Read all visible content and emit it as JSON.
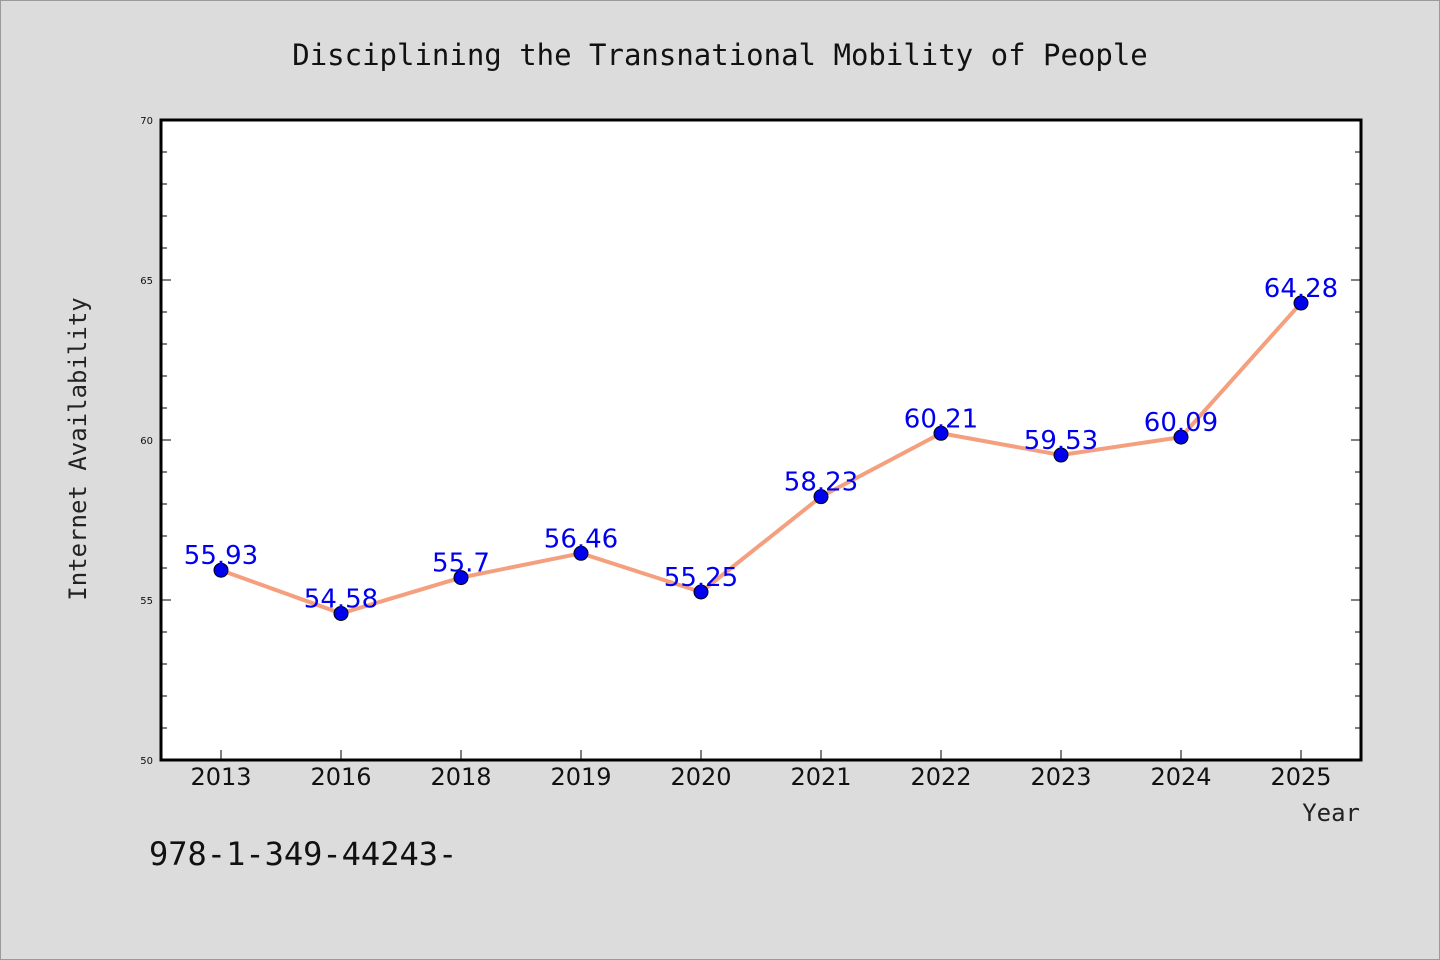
{
  "chart_data": {
    "type": "line",
    "title": "Disciplining the Transnational Mobility of People",
    "xlabel": "Year",
    "ylabel": "Internet Availability",
    "categories": [
      "2013",
      "2016",
      "2018",
      "2019",
      "2020",
      "2021",
      "2022",
      "2023",
      "2024",
      "2025"
    ],
    "values": [
      55.93,
      54.58,
      55.7,
      56.46,
      55.25,
      58.23,
      60.21,
      59.53,
      60.09,
      64.28
    ],
    "data_labels": [
      "55.93",
      "54.58",
      "55.7",
      "56.46",
      "55.25",
      "58.23",
      "60.21",
      "59.53",
      "60.09",
      "64.28"
    ],
    "ylim": [
      50,
      70
    ],
    "yticks": [
      50,
      55,
      60,
      65,
      70
    ],
    "ytick_labels": [
      "50",
      "55",
      "60",
      "65",
      "70"
    ],
    "grid": false,
    "line_color": "#f4a07e",
    "marker_color": "#0000ee",
    "label_color": "#0000ee",
    "plot_background": "#ffffff",
    "figure_background": "#dcdcdc"
  },
  "footnote": "978-1-349-44243-"
}
